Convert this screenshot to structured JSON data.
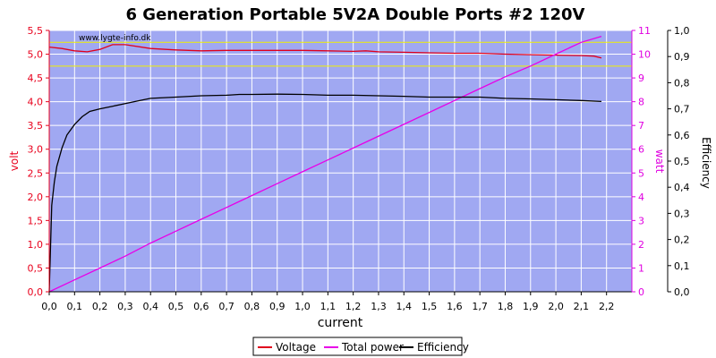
{
  "colors": {
    "plot_bg": "#a0a8f2",
    "grid": "#ffffff",
    "volt_axis": "#e8001c",
    "watt_axis": "#e000e0",
    "eff_axis": "#000000",
    "ref_line": "#f0f000",
    "voltage": "#e0001c",
    "power": "#e800e8",
    "efficiency": "#000000"
  },
  "chart_data": {
    "type": "line",
    "title": "6 Generation Portable 5V2A Double Ports #2 120V",
    "watermark": "www.lygte-info.dk",
    "xlabel": "current",
    "ylabel_left": "volt",
    "ylabel_right_1": "watt",
    "ylabel_right_2": "Efficiency",
    "xlim": [
      0,
      2.3
    ],
    "ylim_left": [
      0,
      5.5
    ],
    "ylim_watt": [
      0,
      11
    ],
    "ylim_eff": [
      0,
      1
    ],
    "x_ticks": [
      "0,0",
      "0,1",
      "0,2",
      "0,3",
      "0,4",
      "0,5",
      "0,6",
      "0,7",
      "0,8",
      "0,9",
      "1,0",
      "1,1",
      "1,2",
      "1,3",
      "1,4",
      "1,5",
      "1,6",
      "1,7",
      "1,8",
      "1,9",
      "2,0",
      "2,1",
      "2,2"
    ],
    "y_left_ticks": [
      "0,0",
      "0,5",
      "1,0",
      "1,5",
      "2,0",
      "2,5",
      "3,0",
      "3,5",
      "4,0",
      "4,5",
      "5,0",
      "5,5"
    ],
    "y_watt_ticks": [
      "0",
      "1",
      "2",
      "3",
      "4",
      "5",
      "6",
      "7",
      "8",
      "9",
      "10",
      "11"
    ],
    "y_eff_ticks": [
      "0,0",
      "0,1",
      "0,2",
      "0,3",
      "0,4",
      "0,5",
      "0,6",
      "0,7",
      "0,8",
      "0,9",
      "1,0"
    ],
    "reference_lines_volt": [
      4.75,
      5.25
    ],
    "legend": [
      "Voltage",
      "Total power",
      "Efficiency"
    ],
    "series": [
      {
        "name": "Voltage",
        "axis": "volt",
        "x": [
          0.0,
          0.05,
          0.1,
          0.15,
          0.2,
          0.25,
          0.3,
          0.4,
          0.5,
          0.6,
          0.7,
          0.8,
          0.9,
          1.0,
          1.1,
          1.2,
          1.25,
          1.3,
          1.4,
          1.5,
          1.6,
          1.7,
          1.8,
          1.9,
          2.0,
          2.1,
          2.15,
          2.18
        ],
        "y": [
          5.15,
          5.12,
          5.07,
          5.05,
          5.1,
          5.2,
          5.2,
          5.12,
          5.09,
          5.07,
          5.08,
          5.08,
          5.08,
          5.08,
          5.07,
          5.06,
          5.07,
          5.05,
          5.04,
          5.03,
          5.02,
          5.02,
          5.0,
          4.99,
          4.98,
          4.97,
          4.96,
          4.92
        ]
      },
      {
        "name": "Total power",
        "axis": "watt",
        "x": [
          0.0,
          0.1,
          0.2,
          0.3,
          0.4,
          0.5,
          0.6,
          0.7,
          0.8,
          0.9,
          1.0,
          1.1,
          1.2,
          1.3,
          1.4,
          1.5,
          1.6,
          1.7,
          1.8,
          1.9,
          2.0,
          2.1,
          2.18
        ],
        "y": [
          0.0,
          0.5,
          1.0,
          1.5,
          2.05,
          2.55,
          3.05,
          3.55,
          4.05,
          4.55,
          5.05,
          5.55,
          6.05,
          6.55,
          7.05,
          7.55,
          8.05,
          8.55,
          9.05,
          9.5,
          10.0,
          10.5,
          10.75
        ]
      },
      {
        "name": "Efficiency",
        "axis": "eff",
        "x": [
          0.0,
          0.01,
          0.02,
          0.03,
          0.05,
          0.07,
          0.1,
          0.13,
          0.16,
          0.2,
          0.25,
          0.3,
          0.35,
          0.4,
          0.5,
          0.6,
          0.7,
          0.75,
          0.8,
          0.9,
          1.0,
          1.1,
          1.2,
          1.3,
          1.4,
          1.5,
          1.6,
          1.7,
          1.8,
          1.9,
          2.0,
          2.1,
          2.18
        ],
        "y": [
          0.0,
          0.33,
          0.42,
          0.48,
          0.55,
          0.6,
          0.64,
          0.67,
          0.69,
          0.7,
          0.71,
          0.72,
          0.73,
          0.74,
          0.745,
          0.75,
          0.752,
          0.755,
          0.755,
          0.756,
          0.755,
          0.752,
          0.752,
          0.75,
          0.748,
          0.745,
          0.745,
          0.745,
          0.74,
          0.738,
          0.735,
          0.732,
          0.728
        ]
      }
    ]
  }
}
